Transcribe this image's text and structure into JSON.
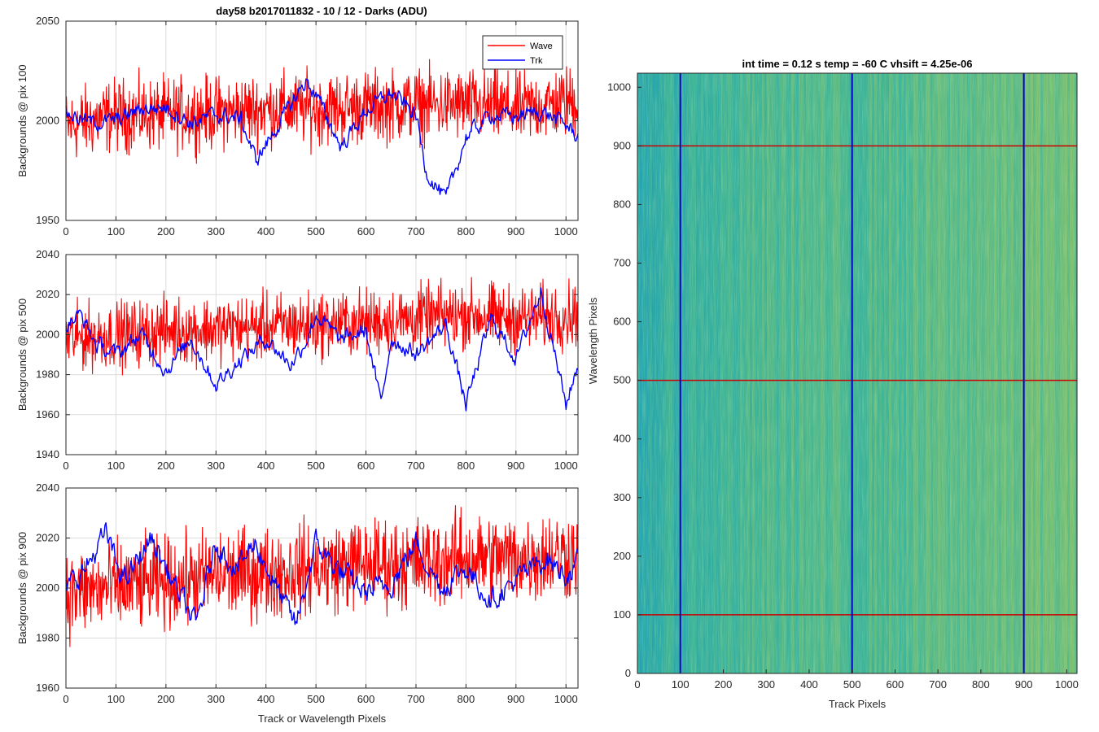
{
  "figure": {
    "background": "#ffffff",
    "wave_color": "#ff0000",
    "trk_color": "#0000ff"
  },
  "chart_data": [
    {
      "type": "line",
      "title": "day58 b2017011832 - 10 / 12 - Darks (ADU)",
      "xlabel": "",
      "ylabel": "Backgrounds @ pix 100",
      "xlim": [
        0,
        1024
      ],
      "ylim": [
        1950,
        2050
      ],
      "xticks": [
        0,
        100,
        200,
        300,
        400,
        500,
        600,
        700,
        800,
        900,
        1000
      ],
      "yticks": [
        1950,
        2000,
        2050
      ],
      "grid": true,
      "legend": {
        "placement": "top-right",
        "entries": [
          "Wave",
          "Trk"
        ]
      },
      "series": [
        {
          "name": "Wave",
          "color": "#ff0000",
          "anchors_x": [
            0,
            100,
            200,
            300,
            400,
            500,
            600,
            700,
            800,
            900,
            1024
          ],
          "anchors_y": [
            1997,
            2003,
            2003,
            2004,
            2006,
            2006,
            2007,
            2008,
            2008,
            2006,
            2010
          ],
          "noise_amplitude": 11,
          "min": 1962,
          "max": 2037
        },
        {
          "name": "Trk",
          "color": "#0000ff",
          "anchors_x": [
            0,
            50,
            100,
            150,
            200,
            250,
            300,
            350,
            380,
            400,
            450,
            480,
            500,
            550,
            600,
            650,
            700,
            720,
            760,
            800,
            850,
            900,
            950,
            1000,
            1024
          ],
          "anchors_y": [
            2004,
            1999,
            2000,
            2006,
            2007,
            1999,
            2003,
            2001,
            1980,
            1988,
            2008,
            2020,
            2013,
            1987,
            2005,
            2014,
            2003,
            1975,
            1960,
            1992,
            2003,
            2002,
            2005,
            1998,
            1992
          ],
          "noise_amplitude": 3,
          "min": 1956,
          "max": 2029
        }
      ]
    },
    {
      "type": "line",
      "title": "",
      "xlabel": "",
      "ylabel": "Backgrounds @ pix 500",
      "xlim": [
        0,
        1024
      ],
      "ylim": [
        1940,
        2040
      ],
      "xticks": [
        0,
        100,
        200,
        300,
        400,
        500,
        600,
        700,
        800,
        900,
        1000
      ],
      "yticks": [
        1940,
        1960,
        1980,
        2000,
        2020,
        2040
      ],
      "grid": true,
      "series": [
        {
          "name": "Wave",
          "color": "#ff0000",
          "anchors_x": [
            0,
            100,
            200,
            300,
            400,
            500,
            600,
            700,
            800,
            900,
            1024
          ],
          "anchors_y": [
            1998,
            2000,
            2002,
            2003,
            2004,
            2005,
            2006,
            2008,
            2010,
            2008,
            2010
          ],
          "noise_amplitude": 10,
          "min": 1951,
          "max": 2039
        },
        {
          "name": "Trk",
          "color": "#0000ff",
          "anchors_x": [
            0,
            30,
            60,
            100,
            150,
            200,
            250,
            300,
            350,
            400,
            450,
            480,
            500,
            550,
            600,
            630,
            650,
            700,
            760,
            800,
            850,
            900,
            950,
            1000,
            1024
          ],
          "anchors_y": [
            2005,
            2010,
            1995,
            1990,
            2000,
            1982,
            1998,
            1975,
            1988,
            1998,
            1985,
            1997,
            2010,
            1997,
            2002,
            1965,
            1998,
            1990,
            2005,
            1965,
            2008,
            1988,
            2022,
            1965,
            1985
          ],
          "noise_amplitude": 3,
          "min": 1958,
          "max": 2035
        }
      ]
    },
    {
      "type": "line",
      "title": "",
      "xlabel": "Track or Wavelength Pixels",
      "ylabel": "Backgrounds @ pix 900",
      "xlim": [
        0,
        1024
      ],
      "ylim": [
        1960,
        2040
      ],
      "xticks": [
        0,
        100,
        200,
        300,
        400,
        500,
        600,
        700,
        800,
        900,
        1000
      ],
      "yticks": [
        1960,
        1980,
        2000,
        2020,
        2040
      ],
      "grid": true,
      "series": [
        {
          "name": "Wave",
          "color": "#ff0000",
          "anchors_x": [
            0,
            100,
            200,
            300,
            400,
            500,
            600,
            700,
            800,
            900,
            1024
          ],
          "anchors_y": [
            1998,
            2000,
            2002,
            2005,
            2006,
            2008,
            2010,
            2010,
            2012,
            2012,
            2014
          ],
          "noise_amplitude": 11,
          "min": 1961,
          "max": 2035
        },
        {
          "name": "Trk",
          "color": "#0000ff",
          "anchors_x": [
            0,
            40,
            80,
            100,
            120,
            170,
            220,
            260,
            300,
            340,
            380,
            420,
            460,
            500,
            540,
            600,
            650,
            700,
            750,
            800,
            850,
            900,
            960,
            1000,
            1024
          ],
          "anchors_y": [
            2000,
            2008,
            2022,
            2010,
            2003,
            2020,
            2000,
            1985,
            2018,
            2008,
            2018,
            2000,
            1985,
            2018,
            2008,
            1998,
            2002,
            2018,
            2000,
            2008,
            1995,
            2003,
            2012,
            2005,
            2010
          ],
          "noise_amplitude": 3.5,
          "min": 1976,
          "max": 2030
        }
      ]
    },
    {
      "type": "heatmap",
      "title": "int time = 0.12 s    temp = -60 C    vhsift = 4.25e-06",
      "xlabel": "Track Pixels",
      "ylabel": "Wavelength Pixels",
      "xlim": [
        0,
        1024
      ],
      "ylim": [
        0,
        1024
      ],
      "xticks": [
        0,
        100,
        200,
        300,
        400,
        500,
        600,
        700,
        800,
        900,
        1000
      ],
      "yticks": [
        0,
        100,
        200,
        300,
        400,
        500,
        600,
        700,
        800,
        900,
        1000
      ],
      "colormap": [
        "#1f95c8",
        "#21a3b2",
        "#40b596",
        "#7cc072",
        "#a6c460"
      ],
      "value_range": [
        1960,
        2040
      ],
      "column_profile": {
        "x": [
          0,
          50,
          100,
          200,
          300,
          400,
          500,
          600,
          700,
          800,
          900,
          1000,
          1024
        ],
        "mean": [
          1985,
          1990,
          1993,
          1998,
          2002,
          2005,
          2002,
          2004,
          2008,
          2010,
          2012,
          2014,
          2012
        ]
      },
      "marker_lines": {
        "vertical_x": [
          100,
          500,
          900
        ],
        "vertical_color": "#0000cc",
        "horizontal_y": [
          100,
          500,
          900
        ],
        "horizontal_color": "#cc0000"
      }
    }
  ]
}
